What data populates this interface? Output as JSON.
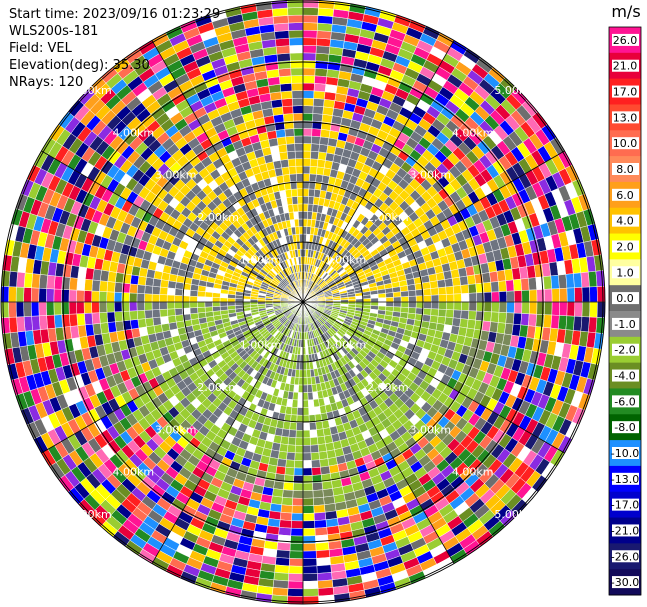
{
  "header": {
    "start_time": "Start time: 2023/09/16 01:23:29",
    "device": "WLS200s-181",
    "field": "Field: VEL",
    "elevation": "Elevation(deg): 35.30",
    "nrays": "NRays: 120"
  },
  "colorbar": {
    "unit": "m/s",
    "ticks": [
      "26.0",
      "21.0",
      "17.0",
      "13.0",
      "10.0",
      "8.0",
      "6.0",
      "4.0",
      "2.0",
      "1.0",
      "0.0",
      "-1.0",
      "-2.0",
      "-4.0",
      "-6.0",
      "-8.0",
      "-10.0",
      "-13.0",
      "-17.0",
      "-21.0",
      "-26.0",
      "-30.0"
    ],
    "colors": [
      "#ff1493",
      "#e8003a",
      "#ff2020",
      "#ff4a30",
      "#ff6c50",
      "#ff8a5a",
      "#ff9f1a",
      "#ffc200",
      "#ffff00",
      "#ffffa0",
      "#6e6e6e",
      "#8a8a8a",
      "#9acd32",
      "#6b8e23",
      "#228b22",
      "#006400",
      "#1e90ff",
      "#0000ff",
      "#0000cd",
      "#00008b",
      "#191970",
      "#120a5a"
    ]
  },
  "range_rings": {
    "labels": [
      "1.00km",
      "2.00km",
      "3.00km",
      "4.00km",
      "5.00km"
    ]
  }
}
